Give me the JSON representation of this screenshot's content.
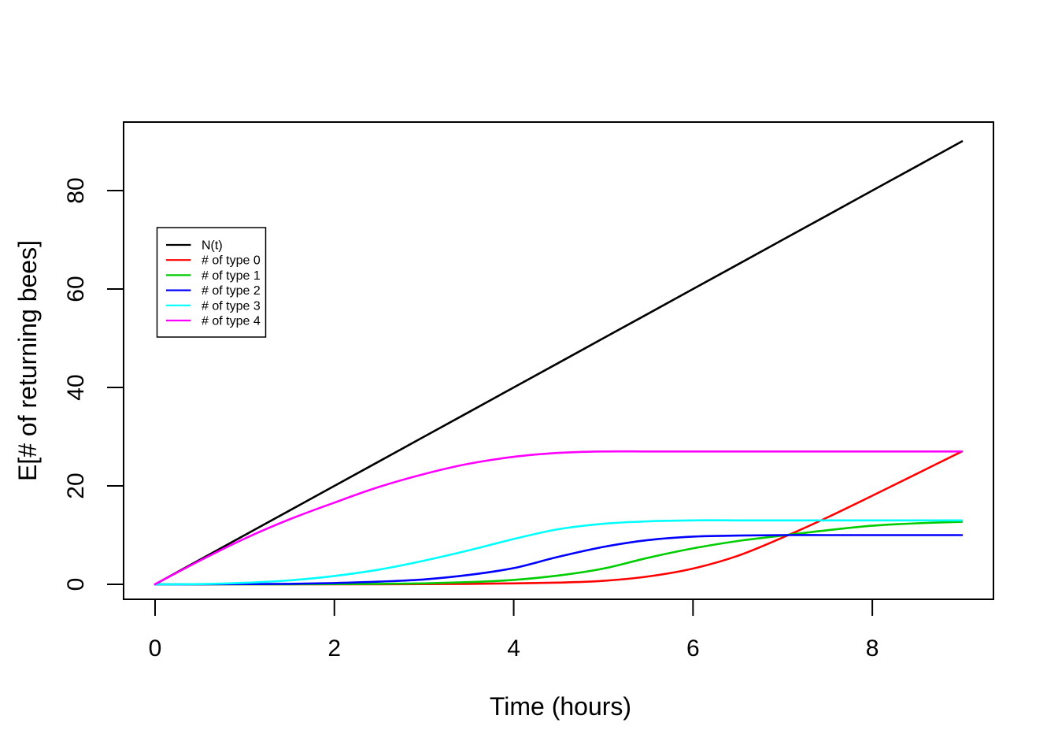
{
  "chart_data": {
    "type": "line",
    "title": "",
    "xlabel": "Time (hours)",
    "ylabel": "E[# of returning bees]",
    "x": [
      0,
      0.5,
      1,
      1.5,
      2,
      2.5,
      3,
      3.5,
      4,
      4.5,
      5,
      5.5,
      6,
      6.5,
      7,
      7.5,
      8,
      8.5,
      9
    ],
    "series": [
      {
        "name": "N(t)",
        "color": "#000000",
        "values": [
          0,
          5,
          10,
          15,
          20,
          25,
          30,
          35,
          40,
          45,
          50,
          55,
          60,
          65,
          70,
          75,
          80,
          85,
          90
        ]
      },
      {
        "name": "# of type 0",
        "color": "#FF0000",
        "values": [
          0,
          0,
          0,
          0,
          0,
          0.02,
          0.05,
          0.1,
          0.2,
          0.35,
          0.7,
          1.6,
          3.2,
          5.8,
          9.5,
          13.6,
          18,
          22.5,
          27
        ]
      },
      {
        "name": "# of type 1",
        "color": "#00CD00",
        "values": [
          0,
          0,
          0,
          0.02,
          0.05,
          0.1,
          0.2,
          0.45,
          0.9,
          1.8,
          3.2,
          5.4,
          7.3,
          8.8,
          9.9,
          11.0,
          11.9,
          12.4,
          12.7
        ]
      },
      {
        "name": "# of type 2",
        "color": "#0000FF",
        "values": [
          0,
          0,
          0.05,
          0.1,
          0.25,
          0.55,
          1.0,
          1.9,
          3.3,
          5.6,
          7.6,
          9.0,
          9.7,
          9.9,
          10,
          10,
          10,
          10,
          10
        ]
      },
      {
        "name": "# of type 3",
        "color": "#00FFFF",
        "values": [
          0,
          0.05,
          0.3,
          0.8,
          1.7,
          3.0,
          4.8,
          6.9,
          9.2,
          11.2,
          12.3,
          12.8,
          13.0,
          13.0,
          13.0,
          13.0,
          13.0,
          13.0,
          13.0
        ]
      },
      {
        "name": "# of type 4",
        "color": "#FF00FF",
        "values": [
          0,
          4.8,
          9.3,
          13.2,
          16.6,
          19.8,
          22.4,
          24.5,
          25.9,
          26.7,
          27,
          27,
          27,
          27,
          27,
          27,
          27,
          27,
          27
        ]
      }
    ],
    "x_ticks": [
      0,
      2,
      4,
      6,
      8
    ],
    "y_ticks": [
      0,
      20,
      40,
      60,
      80
    ],
    "xlim": [
      -0.351,
      9.351
    ],
    "ylim": [
      -3.04,
      93.92
    ],
    "grid": false,
    "legend_position": "upper-left-inside",
    "line_color": "#000000",
    "background": "#FFFFFF"
  }
}
